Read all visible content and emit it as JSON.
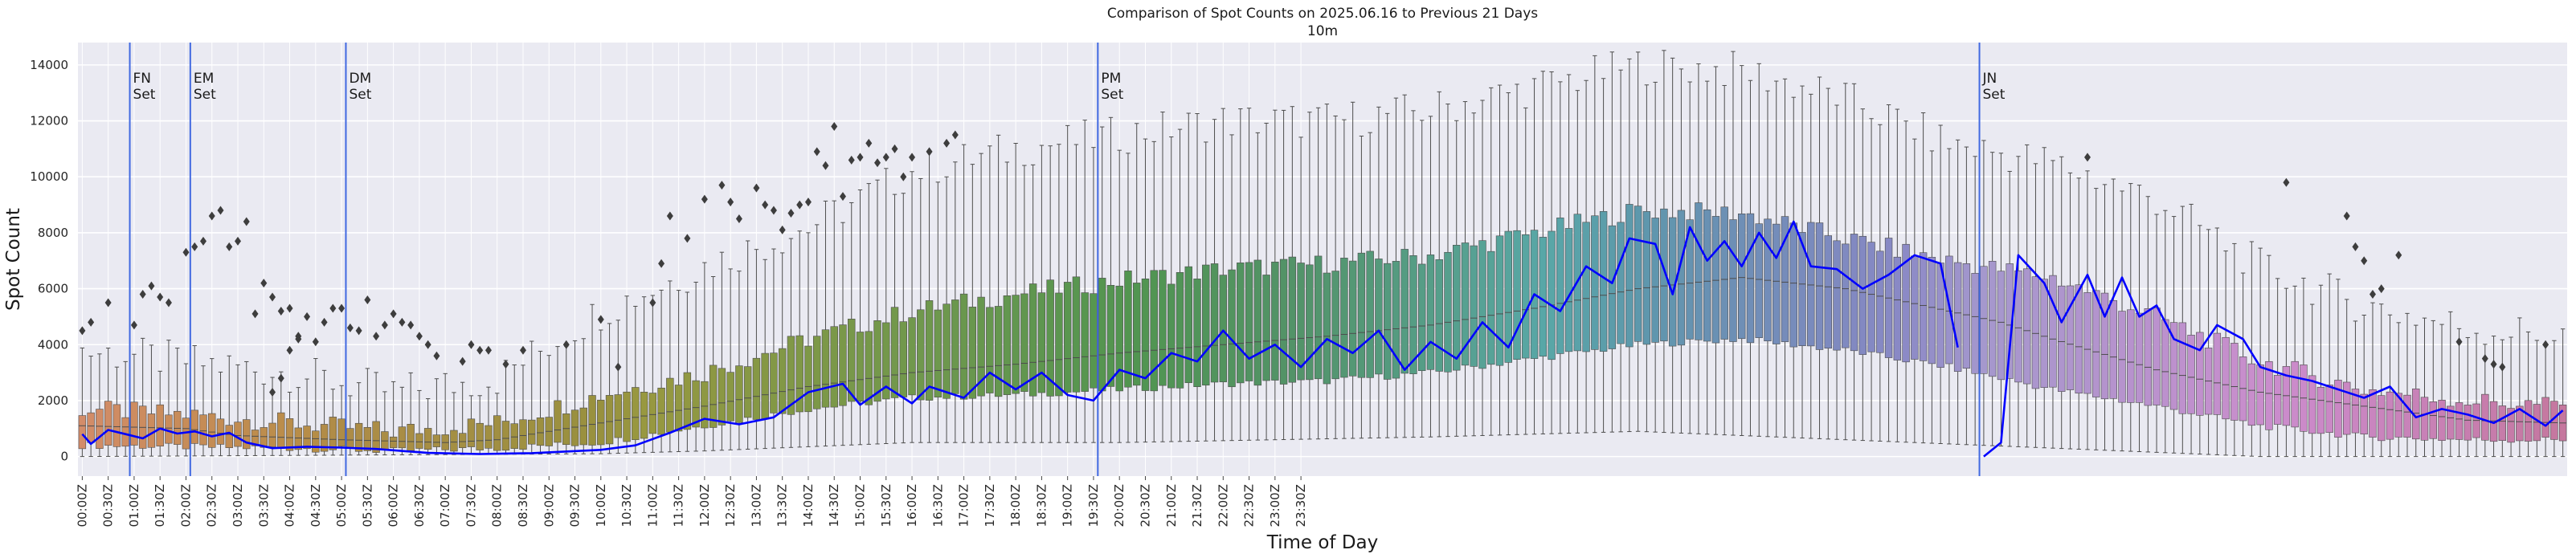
{
  "chart_data": {
    "type": "box",
    "title": "Comparison of Spot Counts on 2025.06.16 to Previous 21 Days",
    "subtitle": "10m",
    "xlabel": "Time of Day",
    "ylabel": "Spot Count",
    "ylim": [
      -700,
      14800
    ],
    "yticks": [
      0,
      2000,
      4000,
      6000,
      8000,
      10000,
      12000,
      14000
    ],
    "grid": true,
    "categories_per_bin_minutes": 10,
    "xtick_labels": [
      "00:00Z",
      "00:30Z",
      "01:00Z",
      "01:30Z",
      "02:00Z",
      "02:30Z",
      "03:00Z",
      "03:30Z",
      "04:00Z",
      "04:30Z",
      "05:00Z",
      "05:30Z",
      "06:00Z",
      "06:30Z",
      "07:00Z",
      "07:30Z",
      "08:00Z",
      "08:30Z",
      "09:00Z",
      "09:30Z",
      "10:00Z",
      "10:30Z",
      "11:00Z",
      "11:30Z",
      "12:00Z",
      "12:30Z",
      "13:00Z",
      "13:30Z",
      "14:00Z",
      "14:30Z",
      "15:00Z",
      "15:30Z",
      "16:00Z",
      "16:30Z",
      "17:00Z",
      "17:30Z",
      "18:00Z",
      "18:30Z",
      "19:00Z",
      "19:30Z",
      "20:00Z",
      "20:30Z",
      "21:00Z",
      "21:30Z",
      "22:00Z",
      "22:30Z",
      "23:00Z",
      "23:30Z"
    ],
    "events": [
      {
        "label": "FN Set",
        "line1": "FN",
        "line2": "Set",
        "bin": 6
      },
      {
        "label": "EM Set",
        "line1": "EM",
        "line2": "Set",
        "bin": 13
      },
      {
        "label": "DM Set",
        "line1": "DM",
        "line2": "Set",
        "bin": 31
      },
      {
        "label": "PM Set",
        "line1": "PM",
        "line2": "Set",
        "bin": 118
      },
      {
        "label": "JN Set",
        "line1": "JN",
        "line2": "Set",
        "bin": 220
      }
    ],
    "median_anchors": [
      [
        0,
        1100
      ],
      [
        12,
        1000
      ],
      [
        18,
        750
      ],
      [
        30,
        600
      ],
      [
        42,
        500
      ],
      [
        48,
        600
      ],
      [
        60,
        1200
      ],
      [
        72,
        1800
      ],
      [
        84,
        2500
      ],
      [
        96,
        3000
      ],
      [
        108,
        3300
      ],
      [
        120,
        3700
      ],
      [
        132,
        4000
      ],
      [
        144,
        4300
      ],
      [
        156,
        4700
      ],
      [
        168,
        5300
      ],
      [
        180,
        6000
      ],
      [
        192,
        6400
      ],
      [
        204,
        6000
      ],
      [
        216,
        5200
      ],
      [
        222,
        4800
      ],
      [
        228,
        4200
      ],
      [
        240,
        3100
      ],
      [
        252,
        2300
      ],
      [
        264,
        1800
      ],
      [
        276,
        1300
      ],
      [
        287,
        1200
      ]
    ],
    "q1_anchors": [
      [
        0,
        400
      ],
      [
        12,
        350
      ],
      [
        24,
        300
      ],
      [
        36,
        200
      ],
      [
        48,
        300
      ],
      [
        60,
        500
      ],
      [
        72,
        1100
      ],
      [
        84,
        1700
      ],
      [
        96,
        2100
      ],
      [
        108,
        2200
      ],
      [
        120,
        2400
      ],
      [
        132,
        2600
      ],
      [
        144,
        2700
      ],
      [
        156,
        3000
      ],
      [
        168,
        3500
      ],
      [
        180,
        4000
      ],
      [
        192,
        4200
      ],
      [
        204,
        3800
      ],
      [
        216,
        3200
      ],
      [
        228,
        2400
      ],
      [
        240,
        1800
      ],
      [
        252,
        1100
      ],
      [
        264,
        700
      ],
      [
        276,
        600
      ],
      [
        287,
        600
      ]
    ],
    "q3_anchors": [
      [
        0,
        1700
      ],
      [
        12,
        1500
      ],
      [
        24,
        1200
      ],
      [
        36,
        900
      ],
      [
        48,
        1200
      ],
      [
        60,
        2200
      ],
      [
        72,
        3000
      ],
      [
        84,
        4200
      ],
      [
        96,
        5200
      ],
      [
        108,
        5800
      ],
      [
        120,
        6300
      ],
      [
        132,
        6700
      ],
      [
        144,
        6900
      ],
      [
        156,
        7200
      ],
      [
        168,
        8000
      ],
      [
        180,
        8800
      ],
      [
        192,
        8700
      ],
      [
        204,
        7800
      ],
      [
        216,
        7000
      ],
      [
        228,
        6400
      ],
      [
        240,
        5000
      ],
      [
        252,
        3400
      ],
      [
        264,
        2400
      ],
      [
        276,
        2000
      ],
      [
        287,
        1800
      ]
    ],
    "whisker_high_anchors": [
      [
        0,
        3800
      ],
      [
        12,
        3400
      ],
      [
        24,
        3000
      ],
      [
        36,
        2300
      ],
      [
        48,
        2800
      ],
      [
        60,
        5200
      ],
      [
        72,
        6800
      ],
      [
        84,
        8200
      ],
      [
        96,
        10200
      ],
      [
        108,
        11000
      ],
      [
        120,
        11500
      ],
      [
        132,
        12000
      ],
      [
        144,
        12000
      ],
      [
        156,
        12400
      ],
      [
        168,
        13200
      ],
      [
        180,
        14000
      ],
      [
        192,
        13800
      ],
      [
        204,
        12800
      ],
      [
        216,
        11200
      ],
      [
        228,
        10500
      ],
      [
        240,
        9200
      ],
      [
        252,
        6800
      ],
      [
        264,
        5400
      ],
      [
        276,
        4600
      ],
      [
        287,
        4300
      ]
    ],
    "whisker_low_anchors": [
      [
        0,
        0
      ],
      [
        60,
        100
      ],
      [
        72,
        200
      ],
      [
        96,
        500
      ],
      [
        120,
        500
      ],
      [
        156,
        700
      ],
      [
        180,
        900
      ],
      [
        204,
        600
      ],
      [
        228,
        300
      ],
      [
        252,
        0
      ],
      [
        287,
        0
      ]
    ],
    "today_line": {
      "name": "2025.06.16",
      "color": "#0000ff",
      "anchors": [
        [
          0,
          800
        ],
        [
          1,
          450
        ],
        [
          2,
          700
        ],
        [
          3,
          950
        ],
        [
          5,
          800
        ],
        [
          7,
          650
        ],
        [
          9,
          1000
        ],
        [
          11,
          820
        ],
        [
          13,
          900
        ],
        [
          15,
          720
        ],
        [
          17,
          850
        ],
        [
          19,
          500
        ],
        [
          22,
          300
        ],
        [
          26,
          350
        ],
        [
          30,
          320
        ],
        [
          34,
          270
        ],
        [
          40,
          130
        ],
        [
          46,
          90
        ],
        [
          52,
          120
        ],
        [
          60,
          240
        ],
        [
          64,
          400
        ],
        [
          68,
          850
        ],
        [
          72,
          1350
        ],
        [
          76,
          1150
        ],
        [
          80,
          1400
        ],
        [
          84,
          2300
        ],
        [
          88,
          2600
        ],
        [
          90,
          1850
        ],
        [
          93,
          2500
        ],
        [
          96,
          1900
        ],
        [
          98,
          2500
        ],
        [
          102,
          2100
        ],
        [
          105,
          3000
        ],
        [
          108,
          2400
        ],
        [
          111,
          3000
        ],
        [
          114,
          2200
        ],
        [
          117,
          2000
        ],
        [
          120,
          3100
        ],
        [
          123,
          2800
        ],
        [
          126,
          3700
        ],
        [
          129,
          3400
        ],
        [
          132,
          4500
        ],
        [
          135,
          3500
        ],
        [
          138,
          4000
        ],
        [
          141,
          3200
        ],
        [
          144,
          4200
        ],
        [
          147,
          3700
        ],
        [
          150,
          4500
        ],
        [
          153,
          3100
        ],
        [
          156,
          4100
        ],
        [
          159,
          3500
        ],
        [
          162,
          4800
        ],
        [
          165,
          3900
        ],
        [
          168,
          5800
        ],
        [
          171,
          5200
        ],
        [
          174,
          6800
        ],
        [
          177,
          6200
        ],
        [
          179,
          7800
        ],
        [
          182,
          7600
        ],
        [
          184,
          5800
        ],
        [
          186,
          8200
        ],
        [
          188,
          7000
        ],
        [
          190,
          7700
        ],
        [
          192,
          6800
        ],
        [
          194,
          8000
        ],
        [
          196,
          7100
        ],
        [
          198,
          8400
        ],
        [
          200,
          6800
        ],
        [
          203,
          6700
        ],
        [
          206,
          6000
        ],
        [
          209,
          6500
        ],
        [
          212,
          7200
        ],
        [
          215,
          6900
        ],
        [
          217,
          3900
        ],
        [
          219,
          null
        ],
        [
          220,
          0
        ],
        [
          222,
          500
        ],
        [
          224,
          7200
        ],
        [
          227,
          6200
        ],
        [
          229,
          4800
        ],
        [
          232,
          6500
        ],
        [
          234,
          5000
        ],
        [
          236,
          6400
        ],
        [
          238,
          5000
        ],
        [
          240,
          5400
        ],
        [
          242,
          4200
        ],
        [
          245,
          3800
        ],
        [
          247,
          4700
        ],
        [
          250,
          4200
        ],
        [
          252,
          3200
        ],
        [
          255,
          2900
        ],
        [
          258,
          2700
        ],
        [
          261,
          2400
        ],
        [
          264,
          2100
        ],
        [
          267,
          2500
        ],
        [
          270,
          1400
        ],
        [
          273,
          1700
        ],
        [
          276,
          1500
        ],
        [
          279,
          1200
        ],
        [
          282,
          1700
        ],
        [
          285,
          1100
        ],
        [
          287,
          1650
        ]
      ]
    },
    "outliers": [
      [
        0,
        4500
      ],
      [
        1,
        4800
      ],
      [
        3,
        5500
      ],
      [
        6,
        4700
      ],
      [
        7,
        5800
      ],
      [
        8,
        6100
      ],
      [
        9,
        5700
      ],
      [
        10,
        5500
      ],
      [
        12,
        7300
      ],
      [
        13,
        7500
      ],
      [
        14,
        7700
      ],
      [
        15,
        8600
      ],
      [
        16,
        8800
      ],
      [
        17,
        7500
      ],
      [
        18,
        7700
      ],
      [
        19,
        8400
      ],
      [
        20,
        5100
      ],
      [
        21,
        6200
      ],
      [
        22,
        5700
      ],
      [
        23,
        5200
      ],
      [
        24,
        5300
      ],
      [
        25,
        4300
      ],
      [
        26,
        5000
      ],
      [
        27,
        4100
      ],
      [
        28,
        4800
      ],
      [
        29,
        5300
      ],
      [
        30,
        5300
      ],
      [
        31,
        4600
      ],
      [
        32,
        4500
      ],
      [
        33,
        5600
      ],
      [
        34,
        4300
      ],
      [
        35,
        4700
      ],
      [
        36,
        5100
      ],
      [
        37,
        4800
      ],
      [
        38,
        4700
      ],
      [
        39,
        4300
      ],
      [
        40,
        4000
      ],
      [
        41,
        3600
      ],
      [
        44,
        3400
      ],
      [
        45,
        4000
      ],
      [
        46,
        3800
      ],
      [
        47,
        3800
      ],
      [
        49,
        3300
      ],
      [
        51,
        3800
      ],
      [
        56,
        4000
      ],
      [
        60,
        4900
      ],
      [
        62,
        3200
      ],
      [
        66,
        5500
      ],
      [
        67,
        6900
      ],
      [
        68,
        8600
      ],
      [
        70,
        7800
      ],
      [
        72,
        9200
      ],
      [
        74,
        9700
      ],
      [
        75,
        9100
      ],
      [
        76,
        8500
      ],
      [
        78,
        9600
      ],
      [
        79,
        9000
      ],
      [
        80,
        8800
      ],
      [
        81,
        8100
      ],
      [
        82,
        8700
      ],
      [
        83,
        9000
      ],
      [
        84,
        9100
      ],
      [
        85,
        10900
      ],
      [
        86,
        10400
      ],
      [
        87,
        11800
      ],
      [
        88,
        9300
      ],
      [
        89,
        10600
      ],
      [
        90,
        10700
      ],
      [
        91,
        11200
      ],
      [
        92,
        10500
      ],
      [
        93,
        10700
      ],
      [
        94,
        11000
      ],
      [
        95,
        10000
      ],
      [
        96,
        10700
      ],
      [
        98,
        10900
      ],
      [
        100,
        11200
      ],
      [
        101,
        11500
      ],
      [
        22,
        2300
      ],
      [
        23,
        2800
      ],
      [
        24,
        3800
      ],
      [
        25,
        4200
      ],
      [
        232,
        10700
      ],
      [
        255,
        9800
      ],
      [
        262,
        8600
      ],
      [
        263,
        7500
      ],
      [
        264,
        7000
      ],
      [
        265,
        5800
      ],
      [
        266,
        6000
      ],
      [
        268,
        7200
      ],
      [
        275,
        4100
      ],
      [
        278,
        3500
      ],
      [
        279,
        3300
      ],
      [
        280,
        3200
      ],
      [
        285,
        4000
      ]
    ]
  }
}
